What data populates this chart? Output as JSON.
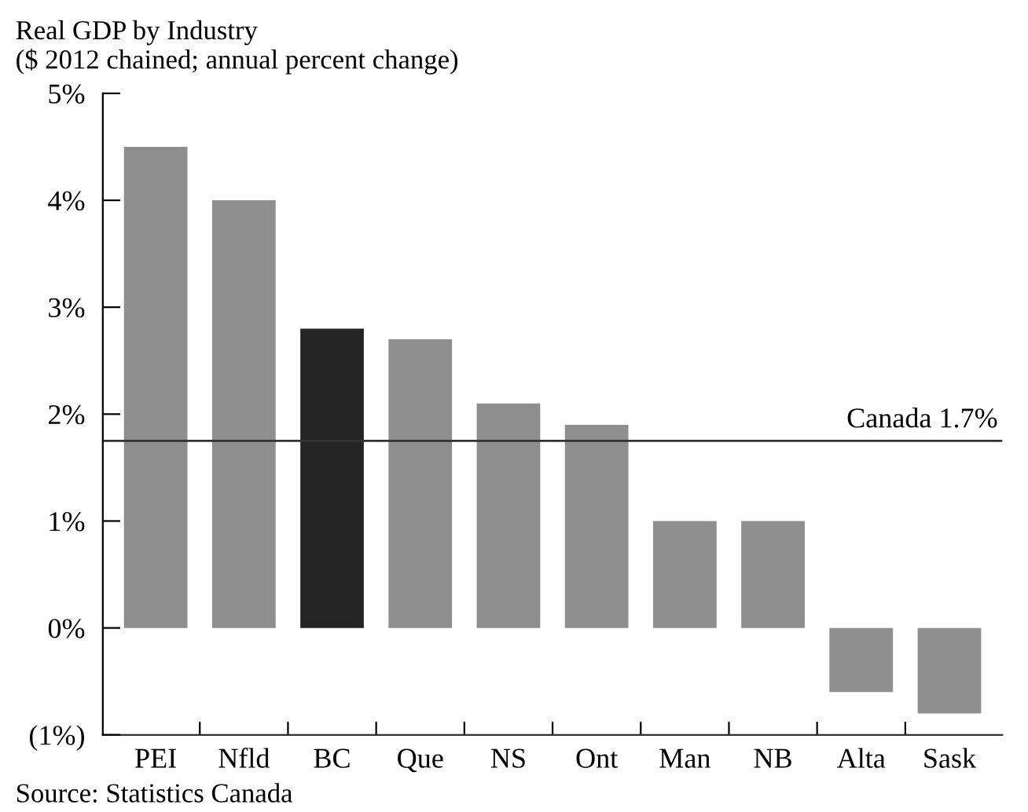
{
  "chart_data": {
    "type": "bar",
    "title": "Real GDP by Industry",
    "subtitle": "($ 2012 chained; annual percent change)",
    "categories": [
      "PEI",
      "Nfld",
      "BC",
      "Que",
      "NS",
      "Ont",
      "Man",
      "NB",
      "Alta",
      "Sask"
    ],
    "values": [
      4.5,
      4.0,
      2.8,
      2.7,
      2.1,
      1.9,
      1.0,
      1.0,
      -0.6,
      -0.8
    ],
    "colors": [
      "#8e8e8e",
      "#8e8e8e",
      "#252525",
      "#8e8e8e",
      "#8e8e8e",
      "#8e8e8e",
      "#8e8e8e",
      "#8e8e8e",
      "#8e8e8e",
      "#8e8e8e"
    ],
    "ylim": [
      -1,
      5
    ],
    "yticks": [
      {
        "value": -1,
        "label": "(1%)"
      },
      {
        "value": 0,
        "label": "0%"
      },
      {
        "value": 1,
        "label": "1%"
      },
      {
        "value": 2,
        "label": "2%"
      },
      {
        "value": 3,
        "label": "3%"
      },
      {
        "value": 4,
        "label": "4%"
      },
      {
        "value": 5,
        "label": "5%"
      }
    ],
    "ref_lines": [
      {
        "axis": "y",
        "value": 1.75,
        "label": "Canada 1.7%",
        "color": "#333333"
      }
    ],
    "grid": false,
    "legend": false,
    "annotations": [
      "Source: Statistics Canada"
    ]
  }
}
